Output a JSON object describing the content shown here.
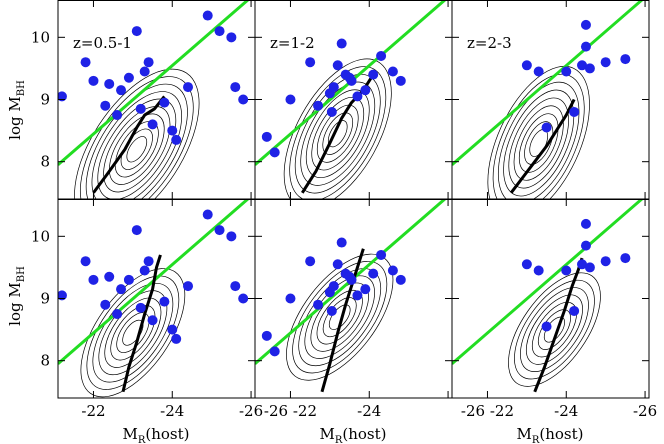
{
  "chart_data": {
    "type": "scatter",
    "grid": false,
    "xlabel_parts": {
      "main": "M",
      "sub": "R",
      "rest": "(host)"
    },
    "ylabel_parts": {
      "main": "log M",
      "sub": "BH"
    },
    "xlim": [
      -21.1,
      -26.1
    ],
    "ylim": [
      7.4,
      10.6
    ],
    "x_ticks": [
      -22,
      -24,
      -26
    ],
    "x_tick_labels": [
      [
        "-22",
        "-24",
        "-26"
      ],
      [
        "-26 -22",
        "-24",
        ""
      ],
      [
        "-26 -22",
        "-24",
        "-26"
      ]
    ],
    "y_ticks": [
      8,
      9,
      10
    ],
    "y_tick_labels": [
      "8",
      "9",
      "10"
    ],
    "colors": {
      "points": "#1f22e6",
      "relation": "#22dd22",
      "median": "#000000",
      "contours": "#000000"
    },
    "relation_line": {
      "x": [
        -21.1,
        -26.1
      ],
      "y": [
        7.95,
        10.7
      ]
    },
    "panels": [
      {
        "row": 0,
        "col": 0,
        "label": "z=0.5-1",
        "points": [
          {
            "x": -21.2,
            "y": 9.05
          },
          {
            "x": -21.8,
            "y": 9.6
          },
          {
            "x": -22.0,
            "y": 9.3
          },
          {
            "x": -22.3,
            "y": 8.9
          },
          {
            "x": -22.4,
            "y": 9.25
          },
          {
            "x": -22.6,
            "y": 8.75
          },
          {
            "x": -22.7,
            "y": 9.15
          },
          {
            "x": -22.9,
            "y": 9.35
          },
          {
            "x": -23.1,
            "y": 10.1
          },
          {
            "x": -23.2,
            "y": 8.85
          },
          {
            "x": -23.3,
            "y": 9.45
          },
          {
            "x": -23.4,
            "y": 9.6
          },
          {
            "x": -23.5,
            "y": 8.6
          },
          {
            "x": -23.8,
            "y": 8.95
          },
          {
            "x": -24.0,
            "y": 8.5
          },
          {
            "x": -24.1,
            "y": 8.35
          },
          {
            "x": -24.4,
            "y": 9.2
          },
          {
            "x": -24.9,
            "y": 10.35
          },
          {
            "x": -25.2,
            "y": 10.1
          },
          {
            "x": -25.5,
            "y": 10.0
          },
          {
            "x": -25.6,
            "y": 9.2
          },
          {
            "x": -25.8,
            "y": 9.0
          }
        ],
        "median": {
          "x": [
            -22.0,
            -22.35,
            -22.8,
            -23.1,
            -23.3,
            -23.55,
            -23.8
          ],
          "y": [
            7.5,
            7.8,
            8.2,
            8.55,
            8.75,
            8.85,
            9.05
          ]
        },
        "contour_center": {
          "x": -23.1,
          "y": 8.2
        },
        "contour_tilt": 22,
        "contour_levels": 10
      },
      {
        "row": 0,
        "col": 1,
        "label": "z=1-2",
        "points": [
          {
            "x": -21.4,
            "y": 8.4
          },
          {
            "x": -21.6,
            "y": 8.15
          },
          {
            "x": -22.0,
            "y": 9.0
          },
          {
            "x": -22.5,
            "y": 9.6
          },
          {
            "x": -22.7,
            "y": 8.9
          },
          {
            "x": -23.0,
            "y": 9.1
          },
          {
            "x": -23.1,
            "y": 9.2
          },
          {
            "x": -23.2,
            "y": 9.55
          },
          {
            "x": -23.3,
            "y": 9.9
          },
          {
            "x": -23.4,
            "y": 9.4
          },
          {
            "x": -23.5,
            "y": 9.35
          },
          {
            "x": -23.55,
            "y": 9.3
          },
          {
            "x": -23.7,
            "y": 9.05
          },
          {
            "x": -23.9,
            "y": 9.15
          },
          {
            "x": -24.1,
            "y": 9.4
          },
          {
            "x": -24.3,
            "y": 9.7
          },
          {
            "x": -24.6,
            "y": 9.45
          },
          {
            "x": -24.8,
            "y": 9.3
          },
          {
            "x": -23.05,
            "y": 8.8
          }
        ],
        "median": {
          "x": [
            -22.3,
            -22.65,
            -23.0,
            -23.3,
            -23.55,
            -23.85,
            -24.1
          ],
          "y": [
            7.5,
            7.85,
            8.3,
            8.7,
            8.95,
            9.15,
            9.4
          ]
        },
        "contour_center": {
          "x": -23.2,
          "y": 8.45
        },
        "contour_tilt": 26,
        "contour_levels": 9
      },
      {
        "row": 0,
        "col": 2,
        "label": "z=2-3",
        "points": [
          {
            "x": -23.0,
            "y": 9.55
          },
          {
            "x": -23.3,
            "y": 9.45
          },
          {
            "x": -23.5,
            "y": 8.55
          },
          {
            "x": -24.0,
            "y": 9.45
          },
          {
            "x": -24.2,
            "y": 8.8
          },
          {
            "x": -24.4,
            "y": 9.55
          },
          {
            "x": -24.5,
            "y": 9.85
          },
          {
            "x": -24.5,
            "y": 10.2
          },
          {
            "x": -24.6,
            "y": 9.5
          },
          {
            "x": -25.0,
            "y": 9.6
          },
          {
            "x": -25.5,
            "y": 9.65
          }
        ],
        "median": {
          "x": [
            -22.6,
            -22.9,
            -23.2,
            -23.5,
            -23.8,
            -24.0,
            -24.2
          ],
          "y": [
            7.5,
            7.75,
            8.0,
            8.25,
            8.55,
            8.75,
            9.0
          ]
        },
        "contour_center": {
          "x": -23.3,
          "y": 8.3
        },
        "contour_tilt": 30,
        "contour_levels": 9
      },
      {
        "row": 1,
        "col": 0,
        "label": "",
        "points": [
          {
            "x": -21.2,
            "y": 9.05
          },
          {
            "x": -21.8,
            "y": 9.6
          },
          {
            "x": -22.0,
            "y": 9.3
          },
          {
            "x": -22.3,
            "y": 8.9
          },
          {
            "x": -22.4,
            "y": 9.35
          },
          {
            "x": -22.6,
            "y": 8.75
          },
          {
            "x": -22.7,
            "y": 9.15
          },
          {
            "x": -22.9,
            "y": 9.3
          },
          {
            "x": -23.1,
            "y": 10.1
          },
          {
            "x": -23.2,
            "y": 8.85
          },
          {
            "x": -23.3,
            "y": 9.45
          },
          {
            "x": -23.4,
            "y": 9.6
          },
          {
            "x": -23.5,
            "y": 8.65
          },
          {
            "x": -23.8,
            "y": 8.95
          },
          {
            "x": -24.0,
            "y": 8.5
          },
          {
            "x": -24.1,
            "y": 8.35
          },
          {
            "x": -24.4,
            "y": 9.2
          },
          {
            "x": -24.9,
            "y": 10.35
          },
          {
            "x": -25.2,
            "y": 10.1
          },
          {
            "x": -25.5,
            "y": 10.0
          },
          {
            "x": -25.6,
            "y": 9.2
          },
          {
            "x": -25.8,
            "y": 9.0
          }
        ],
        "median": {
          "x": [
            -22.75,
            -22.9,
            -23.1,
            -23.3,
            -23.5,
            -23.6,
            -23.7
          ],
          "y": [
            7.5,
            7.9,
            8.3,
            8.75,
            9.15,
            9.5,
            9.7
          ]
        },
        "contour_center": {
          "x": -23.0,
          "y": 8.45
        },
        "contour_tilt": 20,
        "contour_levels": 8
      },
      {
        "row": 1,
        "col": 1,
        "label": "",
        "points": [
          {
            "x": -21.4,
            "y": 8.4
          },
          {
            "x": -21.6,
            "y": 8.15
          },
          {
            "x": -22.0,
            "y": 9.0
          },
          {
            "x": -22.5,
            "y": 9.6
          },
          {
            "x": -22.7,
            "y": 8.9
          },
          {
            "x": -23.0,
            "y": 9.1
          },
          {
            "x": -23.1,
            "y": 9.2
          },
          {
            "x": -23.2,
            "y": 9.55
          },
          {
            "x": -23.3,
            "y": 9.9
          },
          {
            "x": -23.4,
            "y": 9.4
          },
          {
            "x": -23.5,
            "y": 9.35
          },
          {
            "x": -23.55,
            "y": 9.3
          },
          {
            "x": -23.7,
            "y": 9.05
          },
          {
            "x": -23.9,
            "y": 9.15
          },
          {
            "x": -24.1,
            "y": 9.4
          },
          {
            "x": -24.3,
            "y": 9.7
          },
          {
            "x": -24.6,
            "y": 9.45
          },
          {
            "x": -24.8,
            "y": 9.3
          },
          {
            "x": -23.05,
            "y": 8.8
          }
        ],
        "median": {
          "x": [
            -22.8,
            -23.0,
            -23.2,
            -23.4,
            -23.6,
            -23.75,
            -23.85
          ],
          "y": [
            7.5,
            7.95,
            8.45,
            8.9,
            9.3,
            9.6,
            9.8
          ]
        },
        "contour_center": {
          "x": -23.25,
          "y": 8.7
        },
        "contour_tilt": 18,
        "contour_levels": 8
      },
      {
        "row": 1,
        "col": 2,
        "label": "",
        "points": [
          {
            "x": -23.0,
            "y": 9.55
          },
          {
            "x": -23.3,
            "y": 9.45
          },
          {
            "x": -23.5,
            "y": 8.55
          },
          {
            "x": -24.0,
            "y": 9.45
          },
          {
            "x": -24.2,
            "y": 8.8
          },
          {
            "x": -24.4,
            "y": 9.55
          },
          {
            "x": -24.5,
            "y": 9.85
          },
          {
            "x": -24.5,
            "y": 10.2
          },
          {
            "x": -24.6,
            "y": 9.5
          },
          {
            "x": -25.0,
            "y": 9.6
          },
          {
            "x": -25.5,
            "y": 9.65
          }
        ],
        "median": {
          "x": [
            -23.2,
            -23.45,
            -23.7,
            -23.95,
            -24.15,
            -24.3,
            -24.4
          ],
          "y": [
            7.5,
            7.9,
            8.35,
            8.8,
            9.2,
            9.45,
            9.65
          ]
        },
        "contour_center": {
          "x": -23.7,
          "y": 8.5
        },
        "contour_tilt": 20,
        "contour_levels": 7
      }
    ]
  }
}
